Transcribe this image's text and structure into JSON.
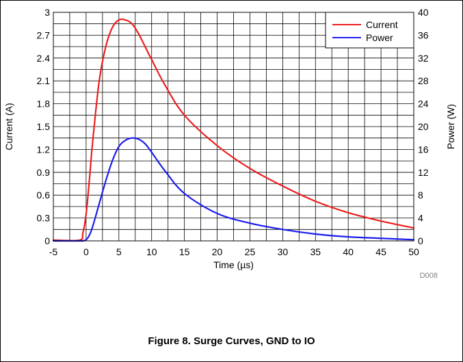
{
  "figure": {
    "caption": "Figure 8. Surge Curves, GND to IO",
    "code": "D008"
  },
  "colors": {
    "current": "#ee1c1c",
    "power": "#1c1cee",
    "grid": "#000000"
  },
  "chart_data": {
    "type": "line",
    "xlabel": "Time (µs)",
    "ylabel": "Current (A)",
    "y2label": "Power (W)",
    "xlim": [
      -5,
      50
    ],
    "ylim": [
      0,
      3
    ],
    "y2lim": [
      0,
      40
    ],
    "x_ticks": [
      "-5",
      "0",
      "5",
      "10",
      "15",
      "20",
      "25",
      "30",
      "35",
      "40",
      "45",
      "50"
    ],
    "y_ticks": [
      "0",
      "0.3",
      "0.6",
      "0.9",
      "1.2",
      "1.5",
      "1.8",
      "2.1",
      "2.4",
      "2.7",
      "3"
    ],
    "y2_ticks": [
      "0",
      "4",
      "8",
      "12",
      "16",
      "20",
      "24",
      "28",
      "32",
      "36",
      "40"
    ],
    "grid": true,
    "legend": {
      "position": "top-right"
    },
    "series": [
      {
        "name": "Current",
        "axis": "left",
        "x": [
          -5,
          -1,
          -0.5,
          0,
          0.5,
          1,
          2,
          3,
          4,
          5,
          6,
          7,
          8,
          9,
          10,
          12,
          15,
          20,
          25,
          30,
          35,
          40,
          45,
          50
        ],
        "y": [
          0.01,
          0.01,
          0.1,
          0.35,
          0.8,
          1.3,
          2.1,
          2.55,
          2.8,
          2.9,
          2.9,
          2.85,
          2.72,
          2.55,
          2.38,
          2.05,
          1.65,
          1.25,
          0.95,
          0.72,
          0.52,
          0.37,
          0.26,
          0.17
        ]
      },
      {
        "name": "Power",
        "axis": "right",
        "x": [
          -5,
          -1,
          -0.5,
          0,
          0.5,
          1,
          2,
          3,
          4,
          5,
          6,
          7,
          8,
          9,
          10,
          12,
          15,
          20,
          25,
          30,
          35,
          40,
          45,
          50
        ],
        "y": [
          0,
          0,
          0,
          0.2,
          1,
          2.5,
          6.5,
          10.5,
          14,
          16.5,
          17.6,
          18,
          17.8,
          17,
          15.5,
          12.3,
          8.3,
          4.8,
          3.1,
          2.0,
          1.2,
          0.7,
          0.45,
          0.2
        ]
      }
    ]
  }
}
